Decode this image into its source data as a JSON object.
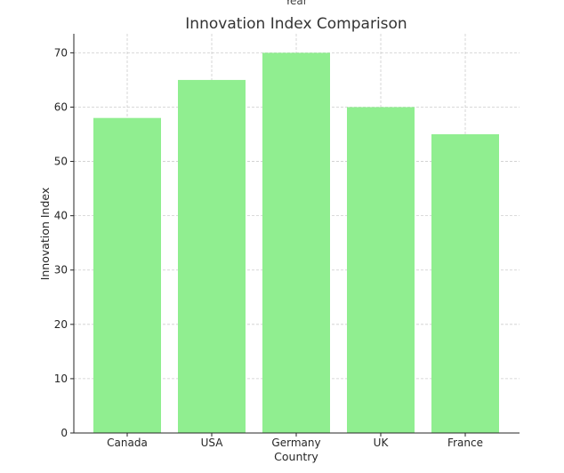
{
  "chart_data": {
    "type": "bar",
    "cut_off_label": "Year",
    "title": "Innovation Index Comparison",
    "xlabel": "Country",
    "ylabel": "Innovation Index",
    "categories": [
      "Canada",
      "USA",
      "Germany",
      "UK",
      "France"
    ],
    "values": [
      58,
      65,
      70,
      60,
      55
    ],
    "ylim": [
      0,
      73.5
    ],
    "yticks": [
      0,
      10,
      20,
      30,
      40,
      50,
      60,
      70
    ],
    "grid": true,
    "bar_color": "#90ee90"
  }
}
